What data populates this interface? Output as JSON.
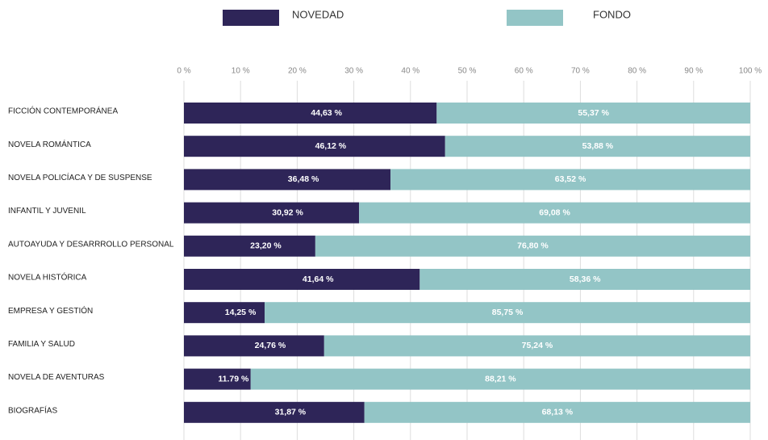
{
  "chart_data": {
    "type": "stacked-barh",
    "categories": [
      "FICCIÓN CONTEMPORÁNEA",
      "NOVELA ROMÁNTICA",
      "NOVELA POLICÍACA Y DE SUSPENSE",
      "INFANTIL Y JUVENIL",
      "AUTOAYUDA Y DESARRROLLO PERSONAL",
      "NOVELA HISTÓRICA",
      "EMPRESA Y GESTIÓN",
      "FAMILIA Y SALUD",
      "NOVELA DE AVENTURAS",
      "BIOGRAFÍAS"
    ],
    "series": [
      {
        "name": "NOVEDAD",
        "color": "#2e2558",
        "values": [
          44.63,
          46.12,
          36.48,
          30.92,
          23.2,
          41.64,
          14.25,
          24.76,
          11.79,
          31.87
        ],
        "value_labels": [
          "44,63 %",
          "46,12 %",
          "36,48 %",
          "30,92 %",
          "23,20 %",
          "41,64 %",
          "14,25 %",
          "24,76 %",
          "11.79 %",
          "31,87 %"
        ]
      },
      {
        "name": "FONDO",
        "color": "#93c5c6",
        "values": [
          55.37,
          53.88,
          63.52,
          69.08,
          76.8,
          58.36,
          85.75,
          75.24,
          88.21,
          68.13
        ],
        "value_labels": [
          "55,37 %",
          "53,88 %",
          "63,52 %",
          "69,08 %",
          "76,80 %",
          "58,36 %",
          "85,75 %",
          "75,24 %",
          "88,21 %",
          "68,13 %"
        ]
      }
    ],
    "xlim": [
      0,
      100
    ],
    "xticks": [
      {
        "value": 0,
        "label": "0 %"
      },
      {
        "value": 10,
        "label": "10 %"
      },
      {
        "value": 20,
        "label": "20 %"
      },
      {
        "value": 30,
        "label": "30 %"
      },
      {
        "value": 40,
        "label": "40 %"
      },
      {
        "value": 50,
        "label": "50 %"
      },
      {
        "value": 60,
        "label": "60 %"
      },
      {
        "value": 70,
        "label": "70 %"
      },
      {
        "value": 80,
        "label": "80 %"
      },
      {
        "value": 90,
        "label": "90 %"
      },
      {
        "value": 100,
        "label": "100 %"
      }
    ],
    "grid": true
  }
}
